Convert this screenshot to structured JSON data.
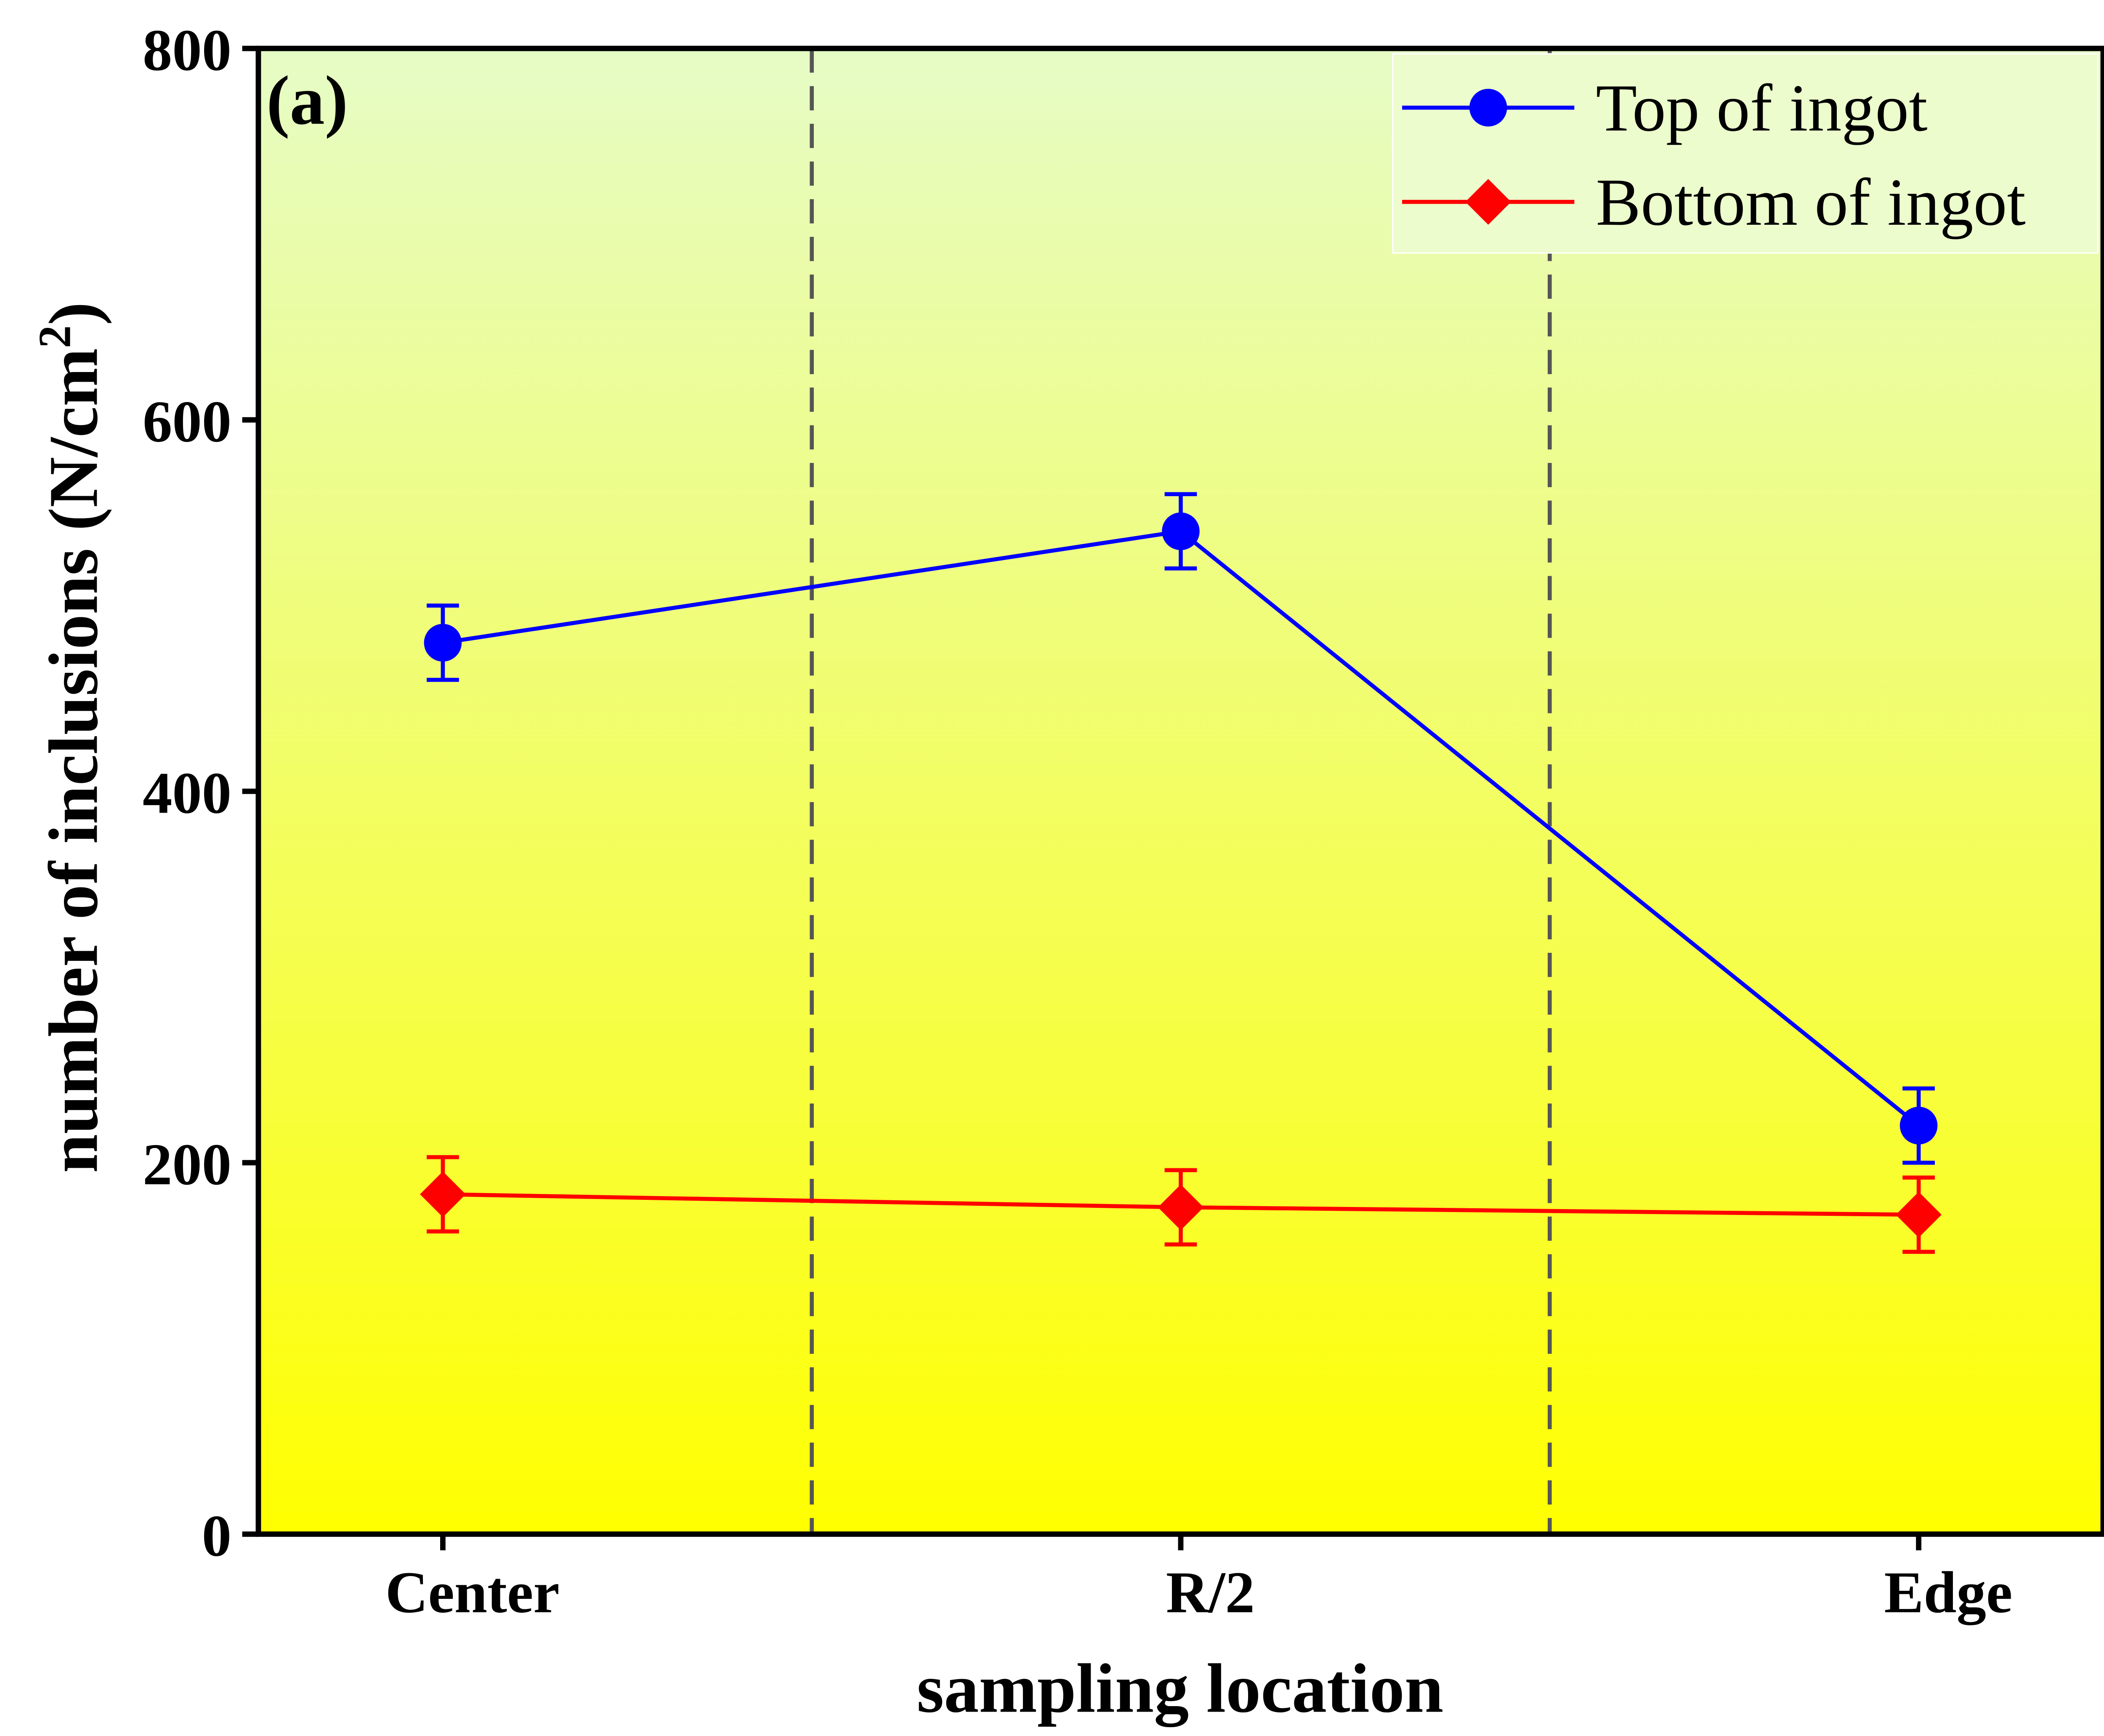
{
  "chart_data": {
    "type": "line",
    "panel_label": "(a)",
    "xlabel": "sampling location",
    "ylabel": "number of inclusions (N/cm",
    "ylabel_sup": "2",
    "ylabel_close": ")",
    "categories": [
      "Center",
      "R/2",
      "Edge"
    ],
    "ylim": [
      0,
      800
    ],
    "yticks": [
      0,
      200,
      400,
      600,
      800
    ],
    "grid": false,
    "separators_between_categories": true,
    "legend_position": "top-right",
    "background": {
      "top": "#e6fcc6",
      "bottom": "#ffff00"
    },
    "series": [
      {
        "name": "Top of ingot",
        "color": "#0000ff",
        "marker": "circle",
        "values": [
          480,
          540,
          220
        ],
        "errors": [
          20,
          20,
          20
        ]
      },
      {
        "name": "Bottom of ingot",
        "color": "#ff0000",
        "marker": "diamond",
        "values": [
          183,
          176,
          172
        ],
        "errors": [
          20,
          20,
          20
        ]
      }
    ]
  }
}
